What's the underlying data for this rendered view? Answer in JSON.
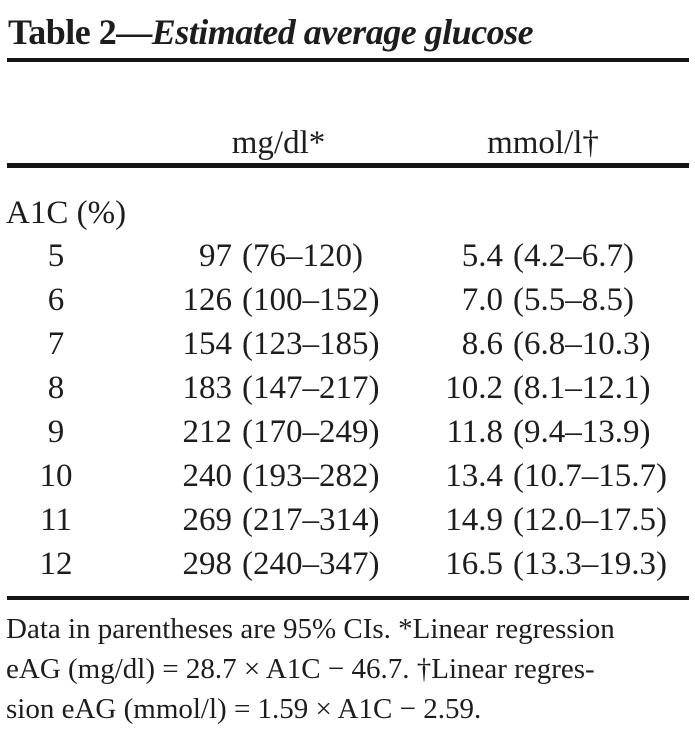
{
  "title": {
    "prefix": "Table 2—",
    "emphasis": "Estimated average glucose"
  },
  "table": {
    "col_headers": {
      "mg": "mg/dl*",
      "mmol": "mmol/l†"
    },
    "row_group_label": "A1C (%)",
    "rows": [
      {
        "a1c": "5",
        "mg": "97",
        "mg_range": "(76–120)",
        "mmol": "5.4",
        "mmol_range": "(4.2–6.7)"
      },
      {
        "a1c": "6",
        "mg": "126",
        "mg_range": "(100–152)",
        "mmol": "7.0",
        "mmol_range": "(5.5–8.5)"
      },
      {
        "a1c": "7",
        "mg": "154",
        "mg_range": "(123–185)",
        "mmol": "8.6",
        "mmol_range": "(6.8–10.3)"
      },
      {
        "a1c": "8",
        "mg": "183",
        "mg_range": "(147–217)",
        "mmol": "10.2",
        "mmol_range": "(8.1–12.1)"
      },
      {
        "a1c": "9",
        "mg": "212",
        "mg_range": "(170–249)",
        "mmol": "11.8",
        "mmol_range": "(9.4–13.9)"
      },
      {
        "a1c": "10",
        "mg": "240",
        "mg_range": "(193–282)",
        "mmol": "13.4",
        "mmol_range": "(10.7–15.7)"
      },
      {
        "a1c": "11",
        "mg": "269",
        "mg_range": "(217–314)",
        "mmol": "14.9",
        "mmol_range": "(12.0–17.5)"
      },
      {
        "a1c": "12",
        "mg": "298",
        "mg_range": "(240–347)",
        "mmol": "16.5",
        "mmol_range": "(13.3–19.3)"
      }
    ]
  },
  "footnote": {
    "line1": "Data in parentheses are 95% CIs. *Linear regression",
    "line2": "eAG (mg/dl) = 28.7 × A1C − 46.7. †Linear regres-",
    "line3": "sion eAG (mmol/l) = 1.59 × A1C − 2.59."
  },
  "colors": {
    "text": "#1d1d1d",
    "rule": "#151515",
    "background": "#ffffff"
  }
}
